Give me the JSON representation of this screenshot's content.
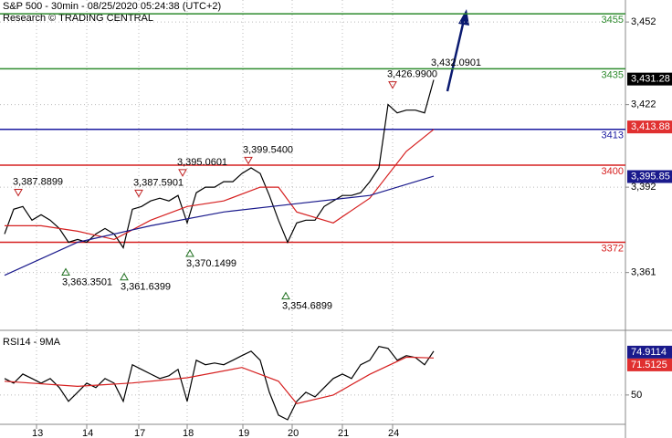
{
  "chart_data": [
    {
      "type": "line",
      "title": "S&P 500 - 30min - 08/25/2020 05:24:38 (UTC+2)",
      "subtitle": "Research © TRADING CENTRAL",
      "xlim": [
        -0.5,
        68
      ],
      "xticks": [
        {
          "value": 3.5,
          "label": "13"
        },
        {
          "value": 9,
          "label": "14"
        },
        {
          "value": 14.7,
          "label": "17"
        },
        {
          "value": 20,
          "label": "18"
        },
        {
          "value": 26.1,
          "label": "19"
        },
        {
          "value": 31.5,
          "label": "20"
        },
        {
          "value": 37,
          "label": "21"
        },
        {
          "value": 42.5,
          "label": "24"
        }
      ],
      "ylim": [
        3340,
        3460
      ],
      "yticks": [
        {
          "value": 3452,
          "label": "3,452"
        },
        {
          "value": 3422,
          "label": "3,422"
        },
        {
          "value": 3392,
          "label": "3,392"
        },
        {
          "value": 3361,
          "label": "3,361"
        }
      ],
      "grid": true,
      "series": [
        {
          "color": "#000000",
          "x": [
            0,
            1,
            2,
            3,
            4,
            5,
            6,
            7,
            8,
            9,
            10,
            11,
            12,
            13,
            14,
            15,
            16,
            17,
            18,
            19,
            20,
            21,
            22,
            23,
            24,
            25,
            26,
            27,
            28,
            29,
            30,
            31,
            32,
            33,
            34,
            35,
            36,
            37,
            38,
            39,
            40,
            41,
            42,
            43,
            44,
            45,
            46,
            47
          ],
          "values": [
            3375,
            3384,
            3385,
            3380,
            3382,
            3380,
            3377,
            3372,
            3373,
            3372,
            3375,
            3377,
            3375,
            3370,
            3384,
            3385,
            3387,
            3388,
            3387,
            3389,
            3379,
            3390,
            3392,
            3392,
            3394,
            3394,
            3397,
            3399,
            3397,
            3389,
            3380,
            3372,
            3379,
            3380,
            3380,
            3385,
            3387,
            3389,
            3389,
            3390,
            3394,
            3399,
            3422,
            3419,
            3420,
            3420,
            3419,
            3431
          ]
        },
        {
          "color": "#d62020",
          "x": [
            0,
            4,
            8,
            12,
            16,
            20,
            24,
            28,
            30,
            32,
            36,
            40,
            44,
            47
          ],
          "values": [
            3378,
            3378,
            3376,
            3373,
            3380,
            3385,
            3387,
            3392,
            3392,
            3383,
            3379,
            3388,
            3405,
            3413
          ]
        },
        {
          "color": "#1a1a8c",
          "x": [
            0,
            8,
            16,
            24,
            32,
            40,
            47
          ],
          "values": [
            3360,
            3372,
            3378,
            3383,
            3386,
            3389,
            3396
          ]
        }
      ],
      "levels": [
        {
          "value": 3455,
          "color": "#2e8b2e"
        },
        {
          "value": 3435,
          "color": "#2e8b2e"
        },
        {
          "value": 3413,
          "color": "#1a1aa0"
        },
        {
          "value": 3400,
          "color": "#d62020"
        },
        {
          "value": 3372,
          "color": "#d62020"
        }
      ],
      "price_tags": [
        {
          "value": 3431.28,
          "label": "3,431.28",
          "color": "#000000"
        },
        {
          "value": 3413.88,
          "label": "3,413.88",
          "color": "#e03030"
        },
        {
          "value": 3395.85,
          "label": "3,395.85",
          "color": "#1a1a8c"
        }
      ],
      "annotations": [
        {
          "x": 1.5,
          "value": 3387.8899,
          "label": "3,387.8899",
          "direction": "down"
        },
        {
          "x": 14.7,
          "value": 3387.5901,
          "label": "3,387.5901",
          "direction": "down"
        },
        {
          "x": 19.5,
          "value": 3395.0601,
          "label": "3,395.0601",
          "direction": "down"
        },
        {
          "x": 26.7,
          "value": 3399.54,
          "label": "3,399.5400",
          "direction": "down"
        },
        {
          "x": 42.5,
          "value": 3426.99,
          "label": "3,426.9900",
          "direction": "down"
        },
        {
          "x": 47.5,
          "value": 3432.0901,
          "label": "3,432.0901",
          "direction": "none"
        },
        {
          "x": 6.7,
          "value": 3363.3501,
          "label": "3,363.3501",
          "direction": "up"
        },
        {
          "x": 13.1,
          "value": 3361.6399,
          "label": "3,361.6399",
          "direction": "up"
        },
        {
          "x": 20.3,
          "value": 3370.1499,
          "label": "3,370.1499",
          "direction": "up"
        },
        {
          "x": 30.8,
          "value": 3354.6899,
          "label": "3,354.6899",
          "direction": "up"
        }
      ]
    },
    {
      "type": "line",
      "title": "RSI14 - 9MA",
      "xlim": [
        -0.5,
        68
      ],
      "ylim": [
        25,
        86
      ],
      "yticks": [
        50
      ],
      "grid": true,
      "series": [
        {
          "color": "#000000",
          "x": [
            0,
            1,
            2,
            3,
            4,
            5,
            6,
            7,
            8,
            9,
            10,
            11,
            12,
            13,
            14,
            15,
            16,
            17,
            18,
            19,
            20,
            21,
            22,
            23,
            24,
            25,
            26,
            27,
            28,
            29,
            30,
            31,
            32,
            33,
            34,
            35,
            36,
            37,
            38,
            39,
            40,
            41,
            42,
            43,
            44,
            45,
            46,
            47
          ],
          "values": [
            59.6,
            56.9,
            62.2,
            59.6,
            56.9,
            59.6,
            54.3,
            46.3,
            51.6,
            56.9,
            54.3,
            59.6,
            56.9,
            46.3,
            67.6,
            64.9,
            62.2,
            59.6,
            61.2,
            64.9,
            46.3,
            70.2,
            67.6,
            68.6,
            67.6,
            70.2,
            72.9,
            75.5,
            70.2,
            51.6,
            38.3,
            35.6,
            46.3,
            51.6,
            48.9,
            54.3,
            59.6,
            62.2,
            59.6,
            67.6,
            70.2,
            78.2,
            77.1,
            70.2,
            72.9,
            71.8,
            67.6,
            75.5
          ]
        },
        {
          "color": "#d62020",
          "x": [
            0,
            8,
            14,
            20,
            26,
            30,
            32,
            36,
            40,
            44,
            47
          ],
          "values": [
            58,
            55,
            57,
            60,
            66,
            58,
            45,
            50,
            62,
            72,
            71.5
          ]
        }
      ],
      "price_tags": [
        {
          "value": 74.9114,
          "label": "74.9114",
          "color": "#1a1a8c"
        },
        {
          "value": 71.5125,
          "label": "71.5125",
          "color": "#e03030"
        }
      ]
    }
  ]
}
